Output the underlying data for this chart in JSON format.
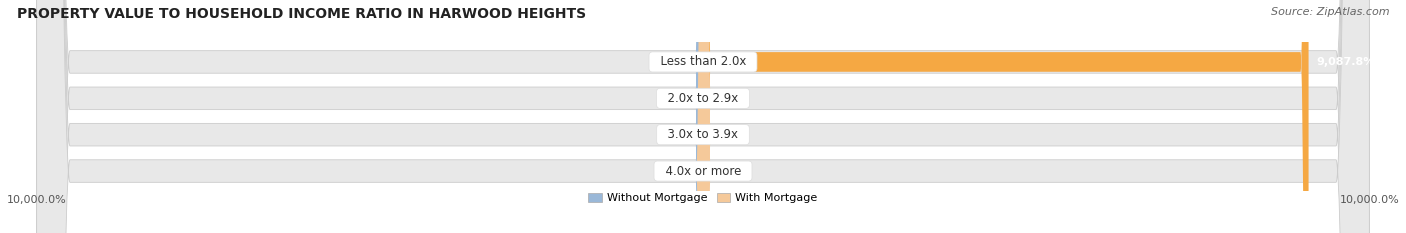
{
  "title": "PROPERTY VALUE TO HOUSEHOLD INCOME RATIO IN HARWOOD HEIGHTS",
  "source": "Source: ZipAtlas.com",
  "categories": [
    "Less than 2.0x",
    "2.0x to 2.9x",
    "3.0x to 3.9x",
    "4.0x or more"
  ],
  "without_mortgage": [
    16.1,
    17.8,
    13.4,
    52.7
  ],
  "with_mortgage": [
    9087.8,
    32.0,
    23.7,
    14.1
  ],
  "x_min": -10000.0,
  "x_max": 10000.0,
  "x_tick_left": "10,000.0%",
  "x_tick_right": "10,000.0%",
  "color_without": "#9ab8d8",
  "color_with_large": "#f5a843",
  "color_with_small": "#f5c99a",
  "bar_bg_color": "#e8e8e8",
  "bar_bg_edge": "#cccccc",
  "legend_label_without": "Without Mortgage",
  "legend_label_with": "With Mortgage",
  "title_fontsize": 10,
  "source_fontsize": 8,
  "label_fontsize": 8,
  "category_fontsize": 8.5,
  "tick_fontsize": 8
}
